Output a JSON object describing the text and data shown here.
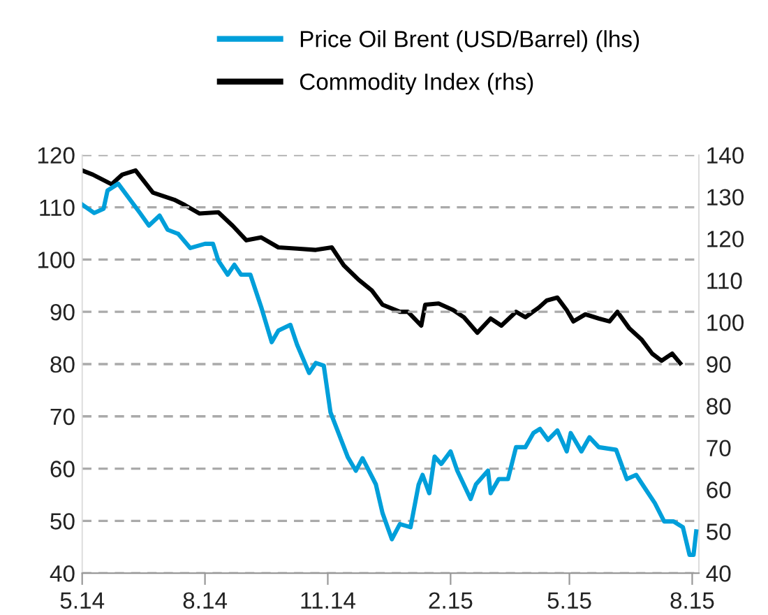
{
  "chart_data": {
    "type": "line",
    "legend": "top",
    "grid": "y",
    "line_style": "solid",
    "marker": "none",
    "xlim": [
      "2014-05-01",
      "2015-08-06"
    ],
    "xticks": [
      {
        "value": "2014-05-01",
        "label": "5.14"
      },
      {
        "value": "2014-08-01",
        "label": "8.14"
      },
      {
        "value": "2014-11-01",
        "label": "11.14"
      },
      {
        "value": "2015-02-01",
        "label": "2.15"
      },
      {
        "value": "2015-05-01",
        "label": "5.15"
      },
      {
        "value": "2015-08-01",
        "label": "8.15"
      }
    ],
    "ylim": [
      40,
      120
    ],
    "yticks": [
      40,
      50,
      60,
      70,
      80,
      90,
      100,
      110,
      120
    ],
    "y2lim": [
      40,
      140
    ],
    "y2ticks": [
      40,
      50,
      60,
      70,
      80,
      90,
      100,
      110,
      120,
      130,
      140
    ],
    "series": [
      {
        "name": "Price Oil Brent (USD/Barrel) (lhs)",
        "color": "#009fda",
        "x": [
          "2014-05-01",
          "2014-05-10",
          "2014-05-17",
          "2014-05-20",
          "2014-05-28",
          "2014-06-13",
          "2014-06-20",
          "2014-06-28",
          "2014-07-04",
          "2014-07-12",
          "2014-07-21",
          "2014-08-01",
          "2014-08-07",
          "2014-08-11",
          "2014-08-18",
          "2014-08-23",
          "2014-08-28",
          "2014-09-04",
          "2014-09-12",
          "2014-09-20",
          "2014-09-25",
          "2014-10-04",
          "2014-10-09",
          "2014-10-18",
          "2014-10-23",
          "2014-10-29",
          "2014-11-03",
          "2014-11-16",
          "2014-11-22",
          "2014-11-27",
          "2014-12-07",
          "2014-12-12",
          "2014-12-19",
          "2014-12-25",
          "2015-01-02",
          "2015-01-08",
          "2015-01-11",
          "2015-01-16",
          "2015-01-20",
          "2015-01-25",
          "2015-02-01",
          "2015-02-06",
          "2015-02-16",
          "2015-02-20",
          "2015-03-01",
          "2015-03-03",
          "2015-03-09",
          "2015-03-16",
          "2015-03-22",
          "2015-03-29",
          "2015-04-04",
          "2015-04-09",
          "2015-04-15",
          "2015-04-22",
          "2015-04-29",
          "2015-05-02",
          "2015-05-10",
          "2015-05-16",
          "2015-05-23",
          "2015-06-05",
          "2015-06-13",
          "2015-06-20",
          "2015-06-27",
          "2015-07-04",
          "2015-07-11",
          "2015-07-18",
          "2015-07-25",
          "2015-07-30",
          "2015-08-02",
          "2015-08-04"
        ],
        "values": [
          110.5,
          108.9,
          109.7,
          113.2,
          114.5,
          109,
          106.5,
          108.4,
          105.7,
          104.9,
          102.2,
          103,
          103,
          99.8,
          97.1,
          99,
          97.1,
          97.1,
          91,
          84.2,
          86.4,
          87.5,
          83.7,
          78.3,
          80.2,
          79.7,
          70.8,
          62.2,
          59.6,
          62,
          57,
          51.5,
          46.5,
          49.4,
          48.8,
          56.9,
          58.8,
          55.3,
          62.3,
          60.9,
          63.3,
          59.6,
          54.2,
          57,
          59.6,
          55.3,
          58,
          58,
          64.1,
          64.1,
          66.8,
          67.6,
          65.5,
          67.3,
          63.3,
          66.8,
          63.3,
          66,
          64.1,
          63.6,
          58,
          58.8,
          56.1,
          53.4,
          49.9,
          49.9,
          48.8,
          43.5,
          43.5,
          48
        ]
      },
      {
        "name": "Commodity Index (rhs)",
        "color": "#000000",
        "axis": "y2",
        "x": [
          "2014-05-01",
          "2014-05-09",
          "2014-05-23",
          "2014-05-31",
          "2014-06-10",
          "2014-06-23",
          "2014-07-09",
          "2014-07-17",
          "2014-07-28",
          "2014-08-11",
          "2014-08-22",
          "2014-09-01",
          "2014-09-12",
          "2014-09-25",
          "2014-10-09",
          "2014-10-23",
          "2014-11-04",
          "2014-11-13",
          "2014-11-24",
          "2014-12-04",
          "2014-12-12",
          "2014-12-25",
          "2014-12-31",
          "2015-01-10",
          "2015-01-13",
          "2015-01-23",
          "2015-02-03",
          "2015-02-11",
          "2015-02-21",
          "2015-03-03",
          "2015-03-11",
          "2015-03-22",
          "2015-03-29",
          "2015-04-08",
          "2015-04-14",
          "2015-04-22",
          "2015-04-29",
          "2015-05-04",
          "2015-05-13",
          "2015-05-23",
          "2015-05-31",
          "2015-06-06",
          "2015-06-15",
          "2015-06-24",
          "2015-07-02",
          "2015-07-09",
          "2015-07-17",
          "2015-07-23"
        ],
        "values": [
          136.3,
          135.3,
          133,
          135.3,
          136.3,
          131,
          129.3,
          128,
          126,
          126.3,
          123,
          119.6,
          120.3,
          117.9,
          117.6,
          117.3,
          117.9,
          113.6,
          110.2,
          107.6,
          104.2,
          102.5,
          102.5,
          99.2,
          104.2,
          104.5,
          102.9,
          101.2,
          97.5,
          100.9,
          99.2,
          102.5,
          101.2,
          103.5,
          105.2,
          105.9,
          102.9,
          100.2,
          101.9,
          100.9,
          100.2,
          102.5,
          98.5,
          95.9,
          92.5,
          90.8,
          92.5,
          90.2
        ]
      }
    ]
  }
}
